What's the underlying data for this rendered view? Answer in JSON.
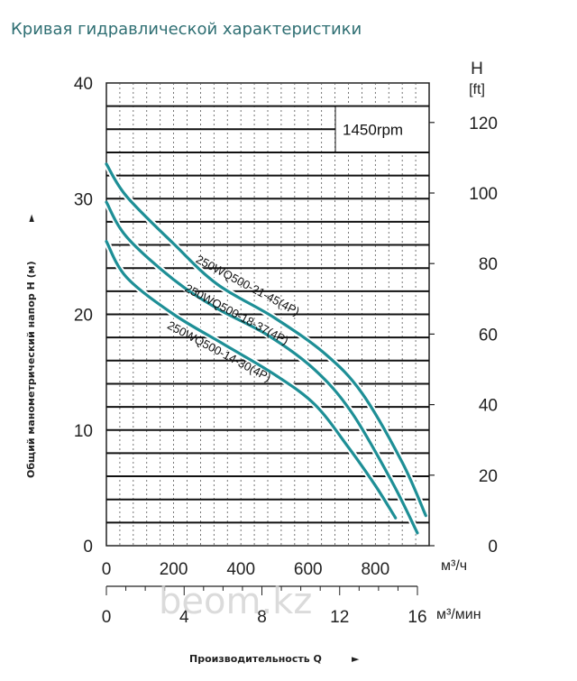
{
  "title": "Кривая гидравлической характеристики",
  "watermark": "beom.kz",
  "chart_data": {
    "type": "line",
    "speed_label": "1450rpm",
    "ylabel": "Общий манометрический напор H (м)",
    "ylabel_arrow": "►",
    "xlabel": "Производительность Q",
    "xlabel_arrow": "►",
    "y_left": {
      "min": 0,
      "max": 40,
      "ticks": [
        "0",
        "10",
        "20",
        "30",
        "40"
      ]
    },
    "y_right": {
      "title": "H",
      "unit": "[ft]",
      "ticks": [
        "0",
        "20",
        "40",
        "60",
        "80",
        "100",
        "120"
      ],
      "max_value": 131.2
    },
    "x_main": {
      "min": 0,
      "max": 960,
      "unit": "м³/ч",
      "ticks": [
        "0",
        "200",
        "400",
        "600",
        "800"
      ],
      "tick_values": [
        0,
        200,
        400,
        600,
        800
      ]
    },
    "x_secondary": {
      "unit": "м³/мин",
      "ticks": [
        "0",
        "4",
        "8",
        "12",
        "16"
      ],
      "tick_values": [
        0,
        4,
        8,
        12,
        16
      ]
    },
    "horizontal_lines": [
      2,
      4,
      6,
      8,
      10,
      12,
      14,
      16,
      18,
      20,
      22,
      24,
      26,
      28,
      30,
      32,
      34,
      36,
      38
    ],
    "series": [
      {
        "name": "250WQ500-21-45(4P)",
        "color": "#1e8f96",
        "points": [
          [
            0,
            33
          ],
          [
            60,
            30.2
          ],
          [
            200,
            26.1
          ],
          [
            330,
            22.6
          ],
          [
            500,
            19.7
          ],
          [
            650,
            16.6
          ],
          [
            760,
            13.2
          ],
          [
            880,
            7.2
          ],
          [
            950,
            2.6
          ]
        ],
        "label_at": [
          415,
          22.2
        ],
        "label_angle": 28
      },
      {
        "name": "250WQ500-18-37(4P)",
        "color": "#1e8f96",
        "points": [
          [
            0,
            29.7
          ],
          [
            60,
            26.7
          ],
          [
            200,
            23.0
          ],
          [
            330,
            20.5
          ],
          [
            480,
            18.2
          ],
          [
            620,
            15.2
          ],
          [
            730,
            11.5
          ],
          [
            850,
            5.5
          ],
          [
            925,
            1.1
          ]
        ],
        "label_at": [
          382,
          19.7
        ],
        "label_angle": 28
      },
      {
        "name": "250WQ500-14-30(4P)",
        "color": "#1e8f96",
        "points": [
          [
            0,
            26.3
          ],
          [
            60,
            23.2
          ],
          [
            200,
            20.0
          ],
          [
            350,
            17.4
          ],
          [
            500,
            14.8
          ],
          [
            620,
            12.2
          ],
          [
            720,
            8.5
          ],
          [
            800,
            5.2
          ],
          [
            860,
            2.4
          ]
        ],
        "label_at": [
          330,
          16.5
        ],
        "label_angle": 28
      }
    ]
  }
}
